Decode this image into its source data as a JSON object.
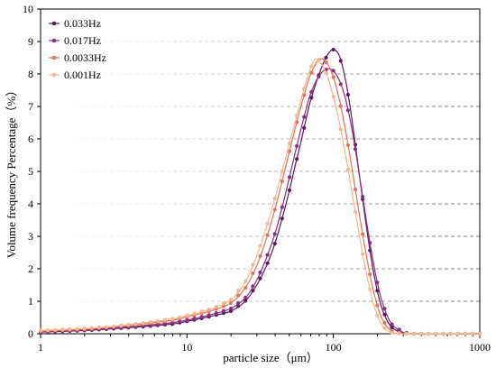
{
  "chart_data": {
    "type": "line",
    "title": "",
    "xlabel": "particle size（μm）",
    "ylabel": "Volume frequency Percentage（%）",
    "x_scale": "log",
    "xlim": [
      1,
      1000
    ],
    "ylim": [
      0,
      10
    ],
    "x_ticks": [
      1,
      10,
      100,
      1000
    ],
    "x_tick_labels": [
      "1",
      "10",
      "100",
      "1000"
    ],
    "y_ticks": [
      0,
      1,
      2,
      3,
      4,
      5,
      6,
      7,
      8,
      9,
      10
    ],
    "y_tick_labels": [
      "0",
      "1",
      "2",
      "3",
      "4",
      "5",
      "6",
      "7",
      "8",
      "9",
      "10"
    ],
    "grid": "horizontal dashed",
    "legend_position": "top-left",
    "series": [
      {
        "name": "0.033Hz",
        "color": "#5b1a5e",
        "points": [
          [
            1,
            0.05
          ],
          [
            2,
            0.1
          ],
          [
            3,
            0.15
          ],
          [
            5,
            0.22
          ],
          [
            8,
            0.3
          ],
          [
            10,
            0.38
          ],
          [
            15,
            0.55
          ],
          [
            20,
            0.7
          ],
          [
            25,
            1.0
          ],
          [
            30,
            1.5
          ],
          [
            35,
            2.1
          ],
          [
            40,
            2.8
          ],
          [
            45,
            3.6
          ],
          [
            50,
            4.4
          ],
          [
            55,
            5.2
          ],
          [
            60,
            5.9
          ],
          [
            65,
            6.6
          ],
          [
            70,
            7.2
          ],
          [
            80,
            8.0
          ],
          [
            90,
            8.55
          ],
          [
            100,
            8.75
          ],
          [
            110,
            8.55
          ],
          [
            120,
            7.9
          ],
          [
            130,
            7.0
          ],
          [
            140,
            5.95
          ],
          [
            160,
            4.0
          ],
          [
            180,
            2.4
          ],
          [
            200,
            1.3
          ],
          [
            220,
            0.65
          ],
          [
            250,
            0.2
          ],
          [
            300,
            0.02
          ],
          [
            350,
            0
          ],
          [
            1000,
            0
          ]
        ]
      },
      {
        "name": "0.017Hz",
        "color": "#8a2f7e",
        "points": [
          [
            1,
            0.06
          ],
          [
            2,
            0.12
          ],
          [
            3,
            0.17
          ],
          [
            5,
            0.25
          ],
          [
            8,
            0.34
          ],
          [
            10,
            0.42
          ],
          [
            15,
            0.6
          ],
          [
            20,
            0.78
          ],
          [
            25,
            1.1
          ],
          [
            30,
            1.65
          ],
          [
            35,
            2.35
          ],
          [
            40,
            3.1
          ],
          [
            45,
            3.95
          ],
          [
            50,
            4.8
          ],
          [
            55,
            5.6
          ],
          [
            60,
            6.3
          ],
          [
            65,
            6.9
          ],
          [
            70,
            7.4
          ],
          [
            80,
            7.95
          ],
          [
            90,
            8.15
          ],
          [
            100,
            8.1
          ],
          [
            110,
            7.8
          ],
          [
            120,
            7.3
          ],
          [
            130,
            6.6
          ],
          [
            140,
            5.8
          ],
          [
            160,
            4.1
          ],
          [
            180,
            2.65
          ],
          [
            200,
            1.55
          ],
          [
            220,
            0.85
          ],
          [
            250,
            0.3
          ],
          [
            300,
            0.04
          ],
          [
            350,
            0
          ],
          [
            1000,
            0
          ]
        ]
      },
      {
        "name": "0.0033Hz",
        "color": "#e0735a",
        "points": [
          [
            1,
            0.08
          ],
          [
            2,
            0.14
          ],
          [
            3,
            0.2
          ],
          [
            5,
            0.3
          ],
          [
            8,
            0.42
          ],
          [
            10,
            0.52
          ],
          [
            15,
            0.72
          ],
          [
            20,
            0.95
          ],
          [
            25,
            1.4
          ],
          [
            30,
            2.1
          ],
          [
            35,
            2.95
          ],
          [
            40,
            3.85
          ],
          [
            45,
            4.75
          ],
          [
            50,
            5.6
          ],
          [
            55,
            6.35
          ],
          [
            60,
            7.0
          ],
          [
            65,
            7.55
          ],
          [
            70,
            8.0
          ],
          [
            80,
            8.45
          ],
          [
            90,
            8.35
          ],
          [
            100,
            7.9
          ],
          [
            110,
            7.2
          ],
          [
            120,
            6.35
          ],
          [
            130,
            5.45
          ],
          [
            140,
            4.55
          ],
          [
            160,
            2.95
          ],
          [
            180,
            1.7
          ],
          [
            200,
            0.85
          ],
          [
            220,
            0.38
          ],
          [
            250,
            0.08
          ],
          [
            300,
            0
          ],
          [
            1000,
            0
          ]
        ]
      },
      {
        "name": "0.001Hz",
        "color": "#f2b88e",
        "points": [
          [
            1,
            0.1
          ],
          [
            2,
            0.16
          ],
          [
            3,
            0.22
          ],
          [
            5,
            0.33
          ],
          [
            8,
            0.46
          ],
          [
            10,
            0.56
          ],
          [
            15,
            0.78
          ],
          [
            20,
            1.05
          ],
          [
            25,
            1.6
          ],
          [
            30,
            2.4
          ],
          [
            35,
            3.3
          ],
          [
            40,
            4.2
          ],
          [
            45,
            5.05
          ],
          [
            50,
            5.85
          ],
          [
            55,
            6.55
          ],
          [
            60,
            7.2
          ],
          [
            65,
            7.75
          ],
          [
            70,
            8.2
          ],
          [
            75,
            8.45
          ],
          [
            80,
            8.4
          ],
          [
            90,
            8.0
          ],
          [
            100,
            7.3
          ],
          [
            110,
            6.5
          ],
          [
            120,
            5.6
          ],
          [
            130,
            4.7
          ],
          [
            140,
            3.85
          ],
          [
            160,
            2.35
          ],
          [
            180,
            1.25
          ],
          [
            200,
            0.55
          ],
          [
            220,
            0.2
          ],
          [
            250,
            0.03
          ],
          [
            300,
            0
          ],
          [
            1000,
            0
          ]
        ]
      }
    ]
  }
}
